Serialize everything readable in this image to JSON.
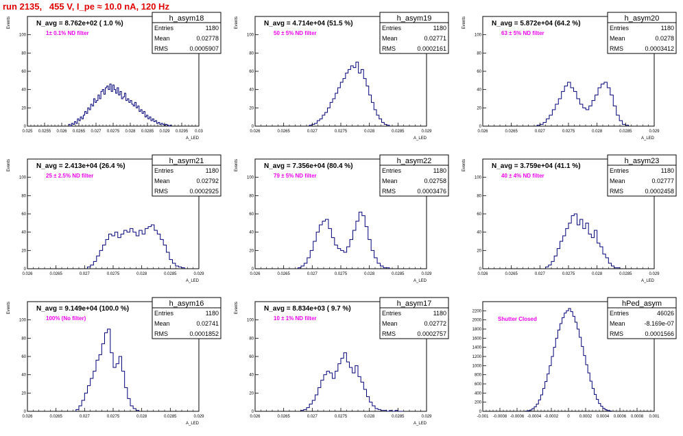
{
  "page_title": "run 2135,   455 V, I_pe ≈ 10.0 nA, 120 Hz",
  "colors": {
    "title": "#e00000",
    "annotation": "#ee00ee",
    "histogram": "#00007a",
    "axis": "#000000",
    "stats_box": "#000000"
  },
  "chart_data": [
    {
      "type": "histogram",
      "name": "h_asym18",
      "ylabel": "Events",
      "xlabel": "A_LED",
      "xlim": [
        0.025,
        0.03
      ],
      "ylim": [
        0,
        120
      ],
      "xticks": [
        "0.025",
        "0.0255",
        "0.026",
        "0.0265",
        "0.027",
        "0.0275",
        "0.028",
        "0.0285",
        "0.029",
        "0.0295",
        "0.03"
      ],
      "yticks": [
        0,
        20,
        40,
        60,
        80,
        100
      ],
      "title": "N_avg = 8.762e+02 ( 1.0 %)",
      "annotation": "1± 0.1% ND filter",
      "stats": {
        "entries": "1180",
        "mean": "0.02778",
        "rms": "0.0005907"
      },
      "stats_labels": {
        "entries": "Entries",
        "mean": "Mean",
        "rms": "RMS"
      },
      "bins": {
        "x0": 0.0262,
        "x1": 0.0292,
        "counts": [
          2,
          0,
          3,
          2,
          5,
          3,
          8,
          6,
          10,
          8,
          12,
          16,
          14,
          20,
          18,
          24,
          22,
          30,
          26,
          28,
          34,
          30,
          38,
          40,
          35,
          42,
          44,
          40,
          46,
          38,
          45,
          40,
          36,
          42,
          34,
          38,
          30,
          32,
          36,
          28,
          30,
          26,
          28,
          24,
          22,
          26,
          20,
          22,
          16,
          18,
          14,
          16,
          10,
          12,
          8,
          10,
          6,
          8,
          5,
          6,
          3,
          4,
          2,
          3,
          2,
          1,
          2,
          1,
          0,
          1
        ]
      }
    },
    {
      "type": "histogram",
      "name": "h_asym19",
      "ylabel": "Events",
      "xlabel": "A_LED",
      "xlim": [
        0.026,
        0.029
      ],
      "ylim": [
        0,
        120
      ],
      "xticks": [
        "0.026",
        "0.0265",
        "0.027",
        "0.0275",
        "0.028",
        "0.0285",
        "0.029"
      ],
      "yticks": [
        0,
        20,
        40,
        60,
        80,
        100
      ],
      "title": "N_avg = 4.714e+04 (51.5 %)",
      "annotation": "50 ± 5% ND filter",
      "stats": {
        "entries": "1180",
        "mean": "0.02771",
        "rms": "0.0002161"
      },
      "stats_labels": {
        "entries": "Entries",
        "mean": "Mean",
        "rms": "RMS"
      },
      "bins": {
        "x0": 0.02695,
        "x1": 0.02835,
        "counts": [
          1,
          2,
          3,
          6,
          8,
          12,
          15,
          20,
          26,
          30,
          36,
          42,
          48,
          52,
          58,
          62,
          66,
          64,
          70,
          58,
          62,
          52,
          44,
          34,
          26,
          18,
          12,
          8,
          4,
          2,
          1
        ]
      }
    },
    {
      "type": "histogram",
      "name": "h_asym20",
      "ylabel": "Events",
      "xlabel": "A_LED",
      "xlim": [
        0.026,
        0.029
      ],
      "ylim": [
        0,
        120
      ],
      "xticks": [
        "0.026",
        "0.0265",
        "0.027",
        "0.0275",
        "0.028",
        "0.0285",
        "0.029"
      ],
      "yticks": [
        0,
        20,
        40,
        60,
        80,
        100
      ],
      "title": "N_avg = 5.872e+04 (64.2 %)",
      "annotation": "63 ± 5% ND filter",
      "stats": {
        "entries": "1180",
        "mean": "0.0278",
        "rms": "0.0003412"
      },
      "stats_labels": {
        "entries": "Entries",
        "mean": "Mean",
        "rms": "RMS"
      },
      "bins": {
        "x0": 0.02695,
        "x1": 0.02855,
        "counts": [
          1,
          2,
          4,
          8,
          12,
          18,
          24,
          30,
          38,
          44,
          48,
          42,
          38,
          30,
          24,
          20,
          18,
          22,
          28,
          34,
          42,
          46,
          48,
          42,
          34,
          22,
          12,
          6,
          2,
          1
        ]
      }
    },
    {
      "type": "histogram",
      "name": "h_asym21",
      "ylabel": "Events",
      "xlabel": "A_LED",
      "xlim": [
        0.026,
        0.029
      ],
      "ylim": [
        0,
        120
      ],
      "xticks": [
        "0.026",
        "0.0265",
        "0.027",
        "0.0275",
        "0.028",
        "0.0285",
        "0.029"
      ],
      "yticks": [
        0,
        20,
        40,
        60,
        80,
        100
      ],
      "title": "N_avg = 2.413e+04 (26.4 %)",
      "annotation": "25 ± 2.5% ND filter",
      "stats": {
        "entries": "1180",
        "mean": "0.02792",
        "rms": "0.0002925"
      },
      "stats_labels": {
        "entries": "Entries",
        "mean": "Mean",
        "rms": "RMS"
      },
      "bins": {
        "x0": 0.02705,
        "x1": 0.02875,
        "counts": [
          2,
          4,
          8,
          14,
          20,
          26,
          32,
          38,
          36,
          40,
          34,
          38,
          42,
          40,
          44,
          40,
          36,
          42,
          38,
          44,
          46,
          48,
          42,
          38,
          32,
          26,
          18,
          10,
          6,
          3,
          2,
          1
        ]
      }
    },
    {
      "type": "histogram",
      "name": "h_asym22",
      "ylabel": "Events",
      "xlabel": "A_LED",
      "xlim": [
        0.026,
        0.029
      ],
      "ylim": [
        0,
        120
      ],
      "xticks": [
        "0.026",
        "0.0265",
        "0.027",
        "0.0275",
        "0.028",
        "0.0285",
        "0.029"
      ],
      "yticks": [
        0,
        20,
        40,
        60,
        80,
        100
      ],
      "title": "N_avg = 7.356e+04 (80.4 %)",
      "annotation": "79 ± 5% ND filter",
      "stats": {
        "entries": "1180",
        "mean": "0.02758",
        "rms": "0.0003476"
      },
      "stats_labels": {
        "entries": "Entries",
        "mean": "Mean",
        "rms": "RMS"
      },
      "bins": {
        "x0": 0.02675,
        "x1": 0.02835,
        "counts": [
          1,
          3,
          6,
          12,
          20,
          30,
          40,
          48,
          52,
          54,
          44,
          34,
          26,
          22,
          20,
          18,
          24,
          32,
          42,
          52,
          62,
          58,
          46,
          32,
          20,
          12,
          6,
          3,
          1,
          1
        ]
      }
    },
    {
      "type": "histogram",
      "name": "h_asym23",
      "ylabel": "Events",
      "xlabel": "A_LED",
      "xlim": [
        0.026,
        0.029
      ],
      "ylim": [
        0,
        120
      ],
      "xticks": [
        "0.026",
        "0.0265",
        "0.027",
        "0.0275",
        "0.028",
        "0.0285",
        "0.029"
      ],
      "yticks": [
        0,
        20,
        40,
        60,
        80,
        100
      ],
      "title": "N_avg = 3.759e+04 (41.1 %)",
      "annotation": "40 ± 4% ND filter",
      "stats": {
        "entries": "1180",
        "mean": "0.02777",
        "rms": "0.0002458"
      },
      "stats_labels": {
        "entries": "Entries",
        "mean": "Mean",
        "rms": "RMS"
      },
      "bins": {
        "x0": 0.0271,
        "x1": 0.0284,
        "counts": [
          2,
          4,
          8,
          14,
          22,
          30,
          36,
          44,
          50,
          58,
          60,
          48,
          54,
          44,
          50,
          38,
          34,
          42,
          28,
          24,
          16,
          12,
          6,
          3,
          1,
          1
        ]
      }
    },
    {
      "type": "histogram",
      "name": "h_asym16",
      "ylabel": "Events",
      "xlabel": "A_LED",
      "xlim": [
        0.026,
        0.029
      ],
      "ylim": [
        0,
        120
      ],
      "xticks": [
        "0.026",
        "0.0265",
        "0.027",
        "0.0275",
        "0.028",
        "0.0285",
        "0.029"
      ],
      "yticks": [
        0,
        20,
        40,
        60,
        80,
        100
      ],
      "title": "N_avg = 9.149e+04 (100.0 %)",
      "annotation": "100% (No filter)",
      "stats": {
        "entries": "1180",
        "mean": "0.02741",
        "rms": "0.0001852"
      },
      "stats_labels": {
        "entries": "Entries",
        "mean": "Mean",
        "rms": "RMS"
      },
      "bins": {
        "x0": 0.02685,
        "x1": 0.02795,
        "counts": [
          2,
          6,
          12,
          20,
          28,
          36,
          44,
          56,
          62,
          74,
          86,
          90,
          64,
          48,
          52,
          60,
          44,
          26,
          14,
          6,
          3,
          1
        ]
      }
    },
    {
      "type": "histogram",
      "name": "h_asym17",
      "ylabel": "Events",
      "xlabel": "A_LED",
      "xlim": [
        0.026,
        0.029
      ],
      "ylim": [
        0,
        120
      ],
      "xticks": [
        "0.026",
        "0.0265",
        "0.027",
        "0.0275",
        "0.028",
        "0.0285",
        "0.029"
      ],
      "yticks": [
        0,
        20,
        40,
        60,
        80,
        100
      ],
      "title": "N_avg = 8.834e+03 ( 9.7 %)",
      "annotation": "10 ± 1% ND filter",
      "stats": {
        "entries": "1180",
        "mean": "0.02772",
        "rms": "0.0002757"
      },
      "stats_labels": {
        "entries": "Entries",
        "mean": "Mean",
        "rms": "RMS"
      },
      "bins": {
        "x0": 0.0268,
        "x1": 0.0286,
        "counts": [
          1,
          2,
          4,
          8,
          12,
          18,
          26,
          34,
          40,
          44,
          42,
          36,
          44,
          52,
          58,
          64,
          54,
          48,
          42,
          50,
          38,
          32,
          24,
          16,
          10,
          6,
          3,
          2,
          1,
          1,
          0,
          1,
          0,
          1,
          0,
          0
        ]
      }
    },
    {
      "type": "histogram",
      "name": "hPed_asym",
      "ylabel": "",
      "xlabel": "",
      "xlim": [
        -0.001,
        0.001
      ],
      "ylim": [
        0,
        2400
      ],
      "xticks": [
        "-0.001",
        "-0.0008",
        "-0.0006",
        "-0.0004",
        "-0.0002",
        "0",
        "0.0002",
        "0.0004",
        "0.0006",
        "0.0008",
        "0.001"
      ],
      "yticks": [
        0,
        200,
        400,
        600,
        800,
        1000,
        1200,
        1400,
        1600,
        1800,
        2000,
        2200
      ],
      "title": "",
      "annotation": "Shutter Closed",
      "stats": {
        "entries": "46026",
        "mean": "-8.169e-07",
        "rms": "0.0001566"
      },
      "stats_labels": {
        "entries": "Entries",
        "mean": "Mean",
        "rms": "RMS"
      },
      "bins": {
        "x0": -0.0005,
        "x1": 0.0005,
        "counts": [
          5,
          15,
          30,
          60,
          100,
          160,
          250,
          360,
          500,
          650,
          820,
          1000,
          1200,
          1400,
          1600,
          1780,
          1920,
          2050,
          2150,
          2200,
          2250,
          2180,
          2080,
          1950,
          1800,
          1620,
          1420,
          1220,
          1020,
          840,
          660,
          500,
          370,
          260,
          170,
          110,
          65,
          35,
          18,
          8
        ]
      }
    }
  ]
}
